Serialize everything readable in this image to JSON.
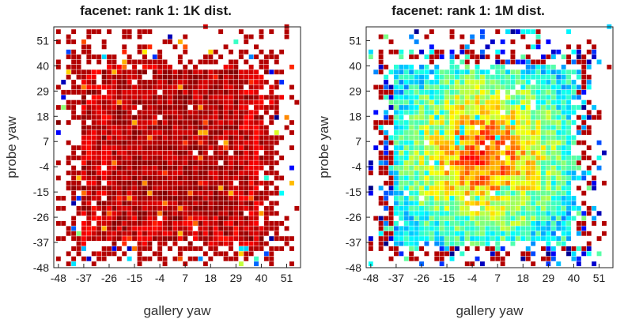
{
  "colors": {
    "low": "#00008f",
    "mid_low": "#00c8ff",
    "mid": "#ffff00",
    "mid_high": "#ff8000",
    "high": "#b40000"
  },
  "chart_data": [
    {
      "type": "heatmap",
      "title": "facenet: rank 1: 1K dist.",
      "xlabel": "gallery yaw",
      "ylabel": "probe yaw",
      "x_ticks": [
        "-48",
        "-37",
        "-26",
        "-15",
        "-4",
        "7",
        "18",
        "29",
        "40",
        "51"
      ],
      "y_ticks": [
        "51",
        "40",
        "29",
        "18",
        "7",
        "-4",
        "-15",
        "-26",
        "-37",
        "-48"
      ],
      "xlim": [
        -50,
        57
      ],
      "ylim": [
        -48,
        57
      ],
      "colormap": "jet",
      "dense_region": {
        "x_range": [
          -40,
          40
        ],
        "y_range": [
          -40,
          40
        ],
        "description_level": "high"
      },
      "core_region": {
        "x_range": [
          -26,
          29
        ],
        "y_range": [
          -26,
          38
        ],
        "level": 0.93
      },
      "edge_level": 0.9,
      "grid": false
    },
    {
      "type": "heatmap",
      "title": "facenet: rank 1: 1M dist.",
      "xlabel": "gallery yaw",
      "ylabel": "probe yaw",
      "x_ticks": [
        "-48",
        "-37",
        "-26",
        "-15",
        "-4",
        "7",
        "18",
        "29",
        "40",
        "51"
      ],
      "y_ticks": [
        "51",
        "40",
        "29",
        "18",
        "7",
        "-4",
        "-15",
        "-26",
        "-37",
        "-48"
      ],
      "xlim": [
        -50,
        57
      ],
      "ylim": [
        -48,
        57
      ],
      "colormap": "jet",
      "dense_region": {
        "x_range": [
          -40,
          40
        ],
        "y_range": [
          -40,
          40
        ]
      },
      "core_region": {
        "x_range": [
          -15,
          18
        ],
        "y_range": [
          -15,
          18
        ],
        "level": 0.72
      },
      "edge_level": 0.35,
      "grid": false
    }
  ]
}
